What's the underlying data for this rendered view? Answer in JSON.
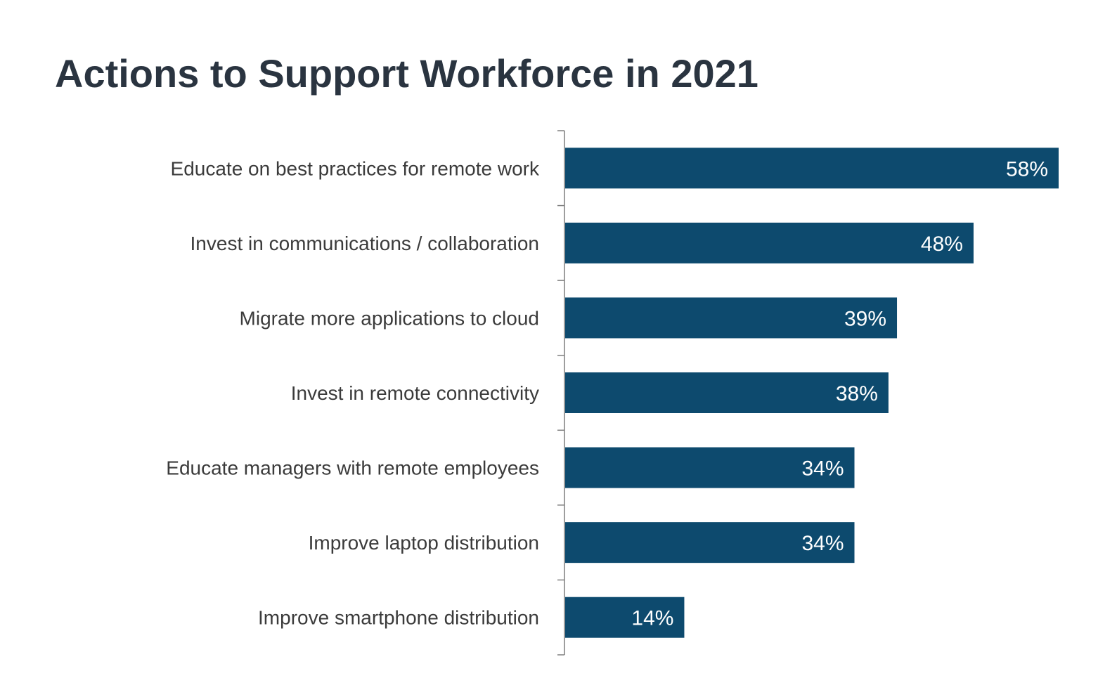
{
  "chart_data": {
    "type": "bar",
    "orientation": "horizontal",
    "title": "Actions to Support Workforce in 2021",
    "categories": [
      "Educate on best practices for remote work",
      "Invest in communications / collaboration",
      "Migrate more applications to cloud",
      "Invest in remote connectivity",
      "Educate managers with remote employees",
      "Improve laptop distribution",
      "Improve smartphone distribution"
    ],
    "values": [
      58,
      48,
      39,
      38,
      34,
      34,
      14
    ],
    "value_labels": [
      "58%",
      "48%",
      "39%",
      "38%",
      "34%",
      "34%",
      "14%"
    ],
    "unit": "%",
    "xlim": [
      0,
      58
    ],
    "grid": false,
    "legend": "none",
    "colors": {
      "bar": "#0d4a6e",
      "axis": "#7f7f7f",
      "value_text": "#ffffff"
    }
  }
}
